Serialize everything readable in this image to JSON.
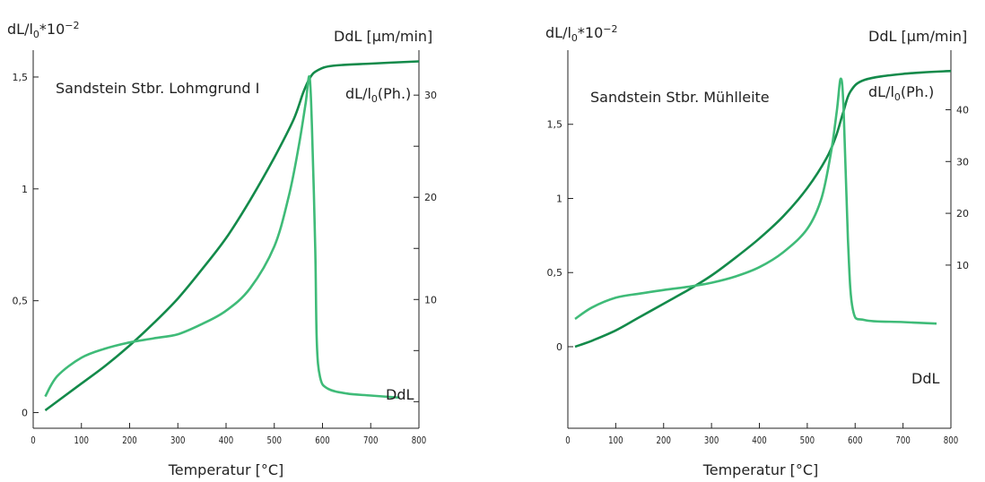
{
  "colors": {
    "dilatation": "#138a4a",
    "rate": "#3fbb78",
    "axis": "#222222"
  },
  "chart_data": [
    {
      "type": "line",
      "title": "Sandstein Stbr. Lohmgrund I",
      "left_axis_label": "dL/l₀*10⁻²",
      "right_axis_label": "DdL [µm/min]",
      "xlabel": "Temperatur [°C]",
      "xlim": [
        0,
        800
      ],
      "x_ticks": [
        0,
        100,
        200,
        300,
        400,
        500,
        600,
        700,
        800
      ],
      "x_tick_labels": [
        "0",
        "100",
        "200",
        "300",
        "400",
        "500",
        "600",
        "700",
        "800"
      ],
      "ylim_left": [
        -0.07,
        1.62
      ],
      "y_left_ticks": [
        0,
        0.5,
        1,
        1.5
      ],
      "y_left_tick_labels": [
        "0",
        "0,5",
        "1",
        "1,5"
      ],
      "ylim_right": [
        -2.6,
        34.4
      ],
      "y_right_ticks": [
        0,
        5,
        10,
        15,
        20,
        25,
        30
      ],
      "y_right_tick_labels": [
        "",
        "",
        "10",
        "",
        "20",
        "",
        "30"
      ],
      "series": [
        {
          "name": "dL/l₀(Ph.)",
          "axis": "left",
          "color": "#138a4a",
          "x": [
            25,
            50,
            100,
            150,
            200,
            250,
            300,
            350,
            400,
            450,
            500,
            540,
            560,
            575,
            590,
            620,
            700,
            800
          ],
          "y": [
            0.01,
            0.05,
            0.13,
            0.21,
            0.3,
            0.4,
            0.51,
            0.64,
            0.78,
            0.95,
            1.14,
            1.31,
            1.43,
            1.5,
            1.53,
            1.55,
            1.56,
            1.57
          ]
        },
        {
          "name": "DdL",
          "axis": "right",
          "color": "#3fbb78",
          "x": [
            25,
            50,
            100,
            150,
            200,
            250,
            300,
            350,
            400,
            450,
            500,
            530,
            550,
            565,
            573,
            578,
            585,
            588,
            595,
            610,
            650,
            700,
            760
          ],
          "y": [
            0.5,
            2.5,
            4.3,
            5.2,
            5.8,
            6.2,
            6.6,
            7.6,
            8.9,
            11.1,
            15.2,
            20.1,
            24.8,
            29.2,
            31.8,
            27.0,
            15.0,
            6.0,
            2.4,
            1.3,
            0.8,
            0.6,
            0.4
          ]
        }
      ],
      "annotations": {
        "series_left": "dL/l₀(Ph.)",
        "series_right": "DdL"
      }
    },
    {
      "type": "line",
      "title": "Sandstein Stbr. Mühlleite",
      "left_axis_label": "dL/l₀*10⁻²",
      "right_axis_label": "DdL [µm/min]",
      "xlabel": "Temperatur [°C]",
      "xlim": [
        0,
        800
      ],
      "x_ticks": [
        0,
        100,
        200,
        300,
        400,
        500,
        600,
        700,
        800
      ],
      "x_tick_labels": [
        "0",
        "100",
        "200",
        "300",
        "400",
        "500",
        "600",
        "700",
        "800"
      ],
      "ylim_left": [
        -0.55,
        2.0
      ],
      "y_left_ticks": [
        0,
        0.5,
        1,
        1.5
      ],
      "y_left_tick_labels": [
        "0",
        "0,5",
        "1",
        "1,5"
      ],
      "ylim_right": [
        -21.5,
        51.5
      ],
      "y_right_ticks": [
        10,
        20,
        30,
        40
      ],
      "y_right_tick_labels": [
        "10",
        "20",
        "30",
        "40"
      ],
      "series": [
        {
          "name": "dL/l₀(Ph.)",
          "axis": "left",
          "color": "#138a4a",
          "x": [
            15,
            50,
            100,
            150,
            200,
            250,
            300,
            350,
            400,
            450,
            500,
            540,
            560,
            575,
            590,
            620,
            700,
            800
          ],
          "y": [
            0.0,
            0.04,
            0.11,
            0.2,
            0.29,
            0.38,
            0.48,
            0.6,
            0.73,
            0.88,
            1.07,
            1.27,
            1.42,
            1.58,
            1.72,
            1.8,
            1.84,
            1.86
          ]
        },
        {
          "name": "DdL",
          "axis": "right",
          "color": "#3fbb78",
          "x": [
            15,
            50,
            100,
            150,
            200,
            250,
            300,
            350,
            400,
            450,
            500,
            530,
            550,
            562,
            570,
            576,
            585,
            595,
            620,
            700,
            770
          ],
          "y": [
            -0.4,
            1.8,
            3.7,
            4.5,
            5.2,
            5.8,
            6.6,
            7.8,
            9.6,
            12.5,
            17.0,
            23.0,
            32.0,
            40.0,
            46.0,
            40.0,
            15.0,
            1.5,
            -0.6,
            -1.0,
            -1.3
          ]
        }
      ],
      "annotations": {
        "series_left": "dL/l₀(Ph.)",
        "series_right": "DdL"
      }
    }
  ]
}
